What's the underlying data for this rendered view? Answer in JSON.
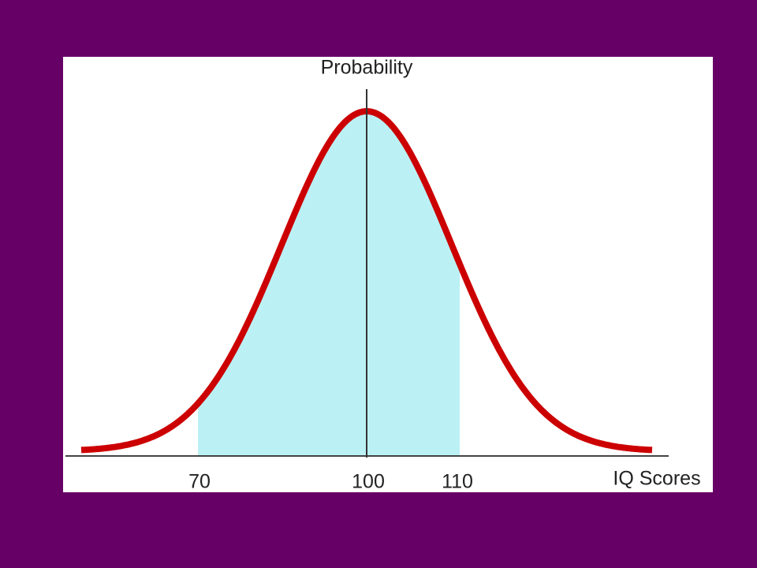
{
  "diagram": {
    "y_axis_label": "Probability",
    "x_axis_label": "IQ Scores",
    "tick_labels": [
      70,
      100,
      110
    ]
  }
}
